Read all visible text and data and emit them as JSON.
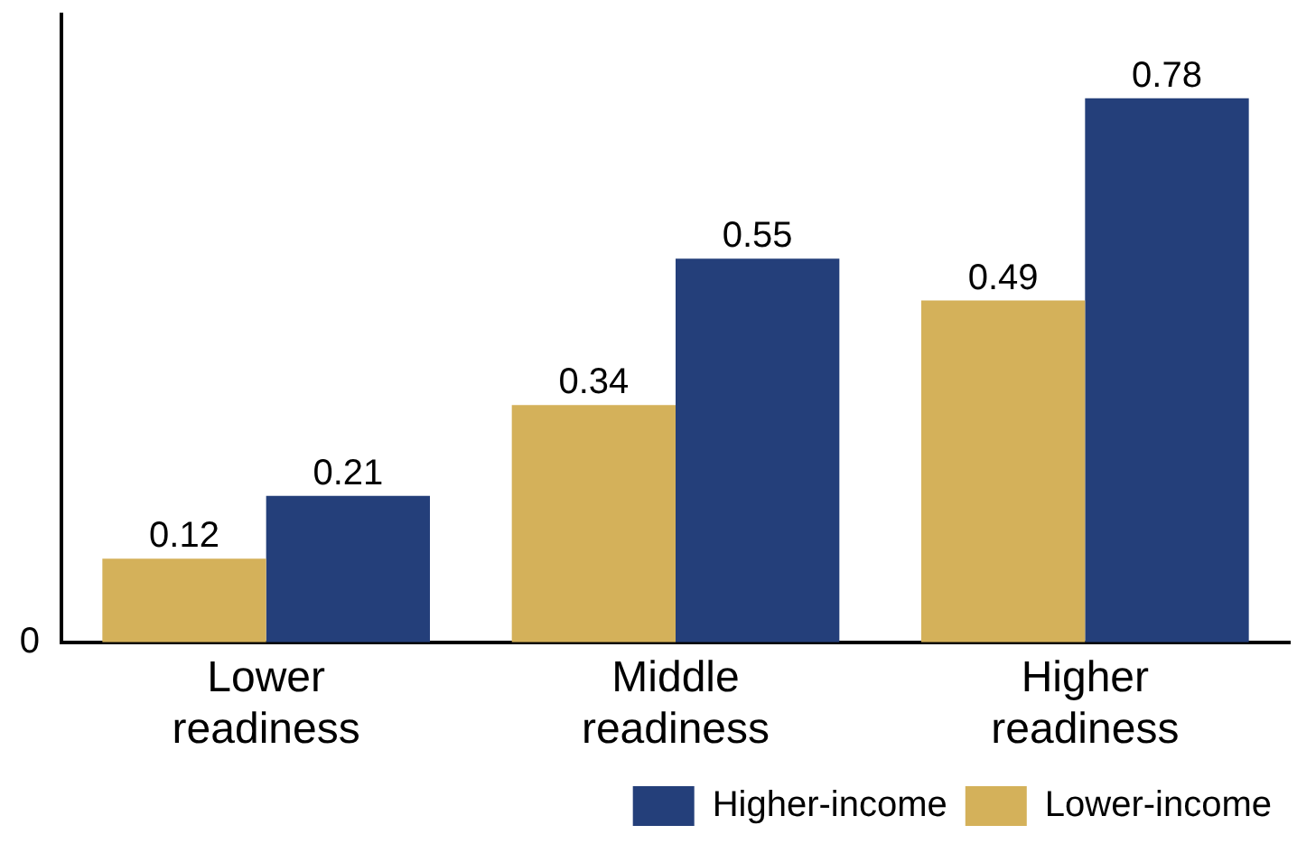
{
  "chart_data": {
    "type": "bar",
    "categories": [
      "Lower readiness",
      "Middle readiness",
      "Higher readiness"
    ],
    "series": [
      {
        "name": "Lower-income",
        "color": "#d4b15a",
        "values": [
          0.12,
          0.34,
          0.49
        ]
      },
      {
        "name": "Higher-income",
        "color": "#243f7a",
        "values": [
          0.21,
          0.55,
          0.78
        ]
      }
    ],
    "annotations": [
      "0"
    ],
    "grid": false,
    "legend": "bottom right",
    "data_labels": true
  }
}
